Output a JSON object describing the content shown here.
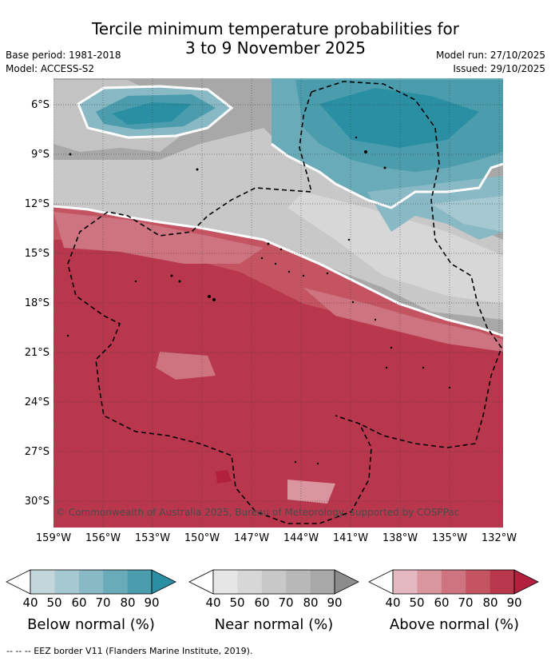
{
  "header": {
    "title_line1": "Tercile minimum temperature probabilities for",
    "title_line2": "3 to 9 November 2025",
    "base_period": "Base period: 1981-2018",
    "model": "Model: ACCESS-S2",
    "model_run": "Model run: 27/10/2025",
    "issued": "Issued: 29/10/2025"
  },
  "map": {
    "y_ticks": [
      "6°S",
      "9°S",
      "12°S",
      "15°S",
      "18°S",
      "21°S",
      "24°S",
      "27°S",
      "30°S"
    ],
    "x_ticks": [
      "159°W",
      "156°W",
      "153°W",
      "150°W",
      "147°W",
      "144°W",
      "141°W",
      "138°W",
      "135°W",
      "132°W"
    ],
    "copyright": "© Commonwealth of Australia 2025, Bureau of Meteorology, supported by COSPPac",
    "colors": {
      "below_max": "#2b8fa3",
      "near_max": "#9a9a9a",
      "above_max": "#b8324a"
    }
  },
  "legend": {
    "below": {
      "title": "Below normal (%)",
      "ticks": [
        "40",
        "50",
        "60",
        "70",
        "80",
        "90"
      ],
      "colors": [
        "#ffffff",
        "#c3d6dc",
        "#a6c8d1",
        "#88b9c5",
        "#6aabb9",
        "#4b9dad",
        "#2b8fa3"
      ]
    },
    "near": {
      "title": "Near normal (%)",
      "ticks": [
        "40",
        "50",
        "60",
        "70",
        "80",
        "90"
      ],
      "colors": [
        "#ffffff",
        "#e6e6e6",
        "#d7d7d7",
        "#c8c8c8",
        "#b8b8b8",
        "#a8a8a8",
        "#8c8c8c"
      ]
    },
    "above": {
      "title": "Above normal (%)",
      "ticks": [
        "40",
        "50",
        "60",
        "70",
        "80",
        "90"
      ],
      "colors": [
        "#ffffff",
        "#e3b8c0",
        "#d9969f",
        "#cd7480",
        "#c45462",
        "#b9374d",
        "#b1203c"
      ]
    }
  },
  "footnote": "--  --  -- EEZ border V11 (Flanders Marine Institute, 2019)."
}
